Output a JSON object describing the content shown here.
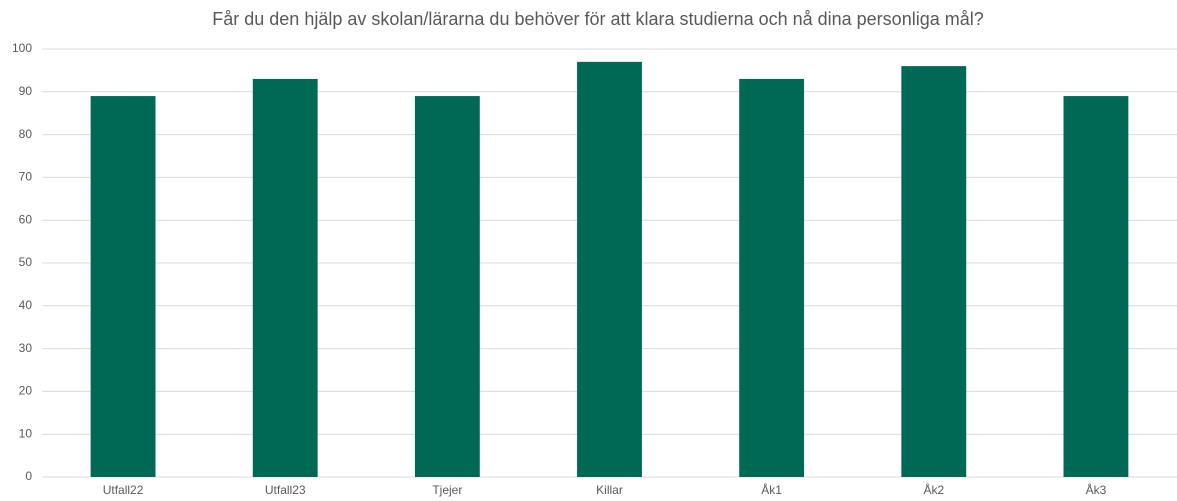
{
  "chart_data": {
    "type": "bar",
    "title": "Får du den hjälp av skolan/lärarna du behöver för att klara studierna och nå dina personliga mål?",
    "categories": [
      "Utfall22",
      "Utfall23",
      "Tjejer",
      "Killar",
      "Åk1",
      "Åk2",
      "Åk3"
    ],
    "values": [
      89,
      93,
      89,
      97,
      93,
      96,
      89
    ],
    "color": "#006956",
    "ylim": [
      0,
      100
    ],
    "yticks": [
      0,
      10,
      20,
      30,
      40,
      50,
      60,
      70,
      80,
      90,
      100
    ],
    "grid": true
  }
}
